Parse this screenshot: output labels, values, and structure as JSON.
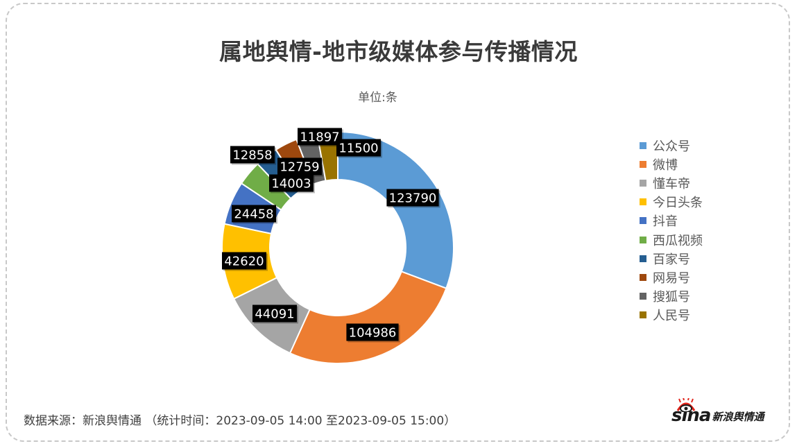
{
  "header": {
    "title": "属地舆情-地市级媒体参与传播情况",
    "subtitle": "单位:条"
  },
  "footer": {
    "source": "数据来源：新浪舆情通 （统计时间：2023-09-05 14:00 至2023-09-05 15:00）",
    "logo_sina": "sina",
    "logo_text": "新浪舆情通"
  },
  "legend": [
    {
      "label": "公众号",
      "color": "#5b9bd5"
    },
    {
      "label": "微博",
      "color": "#ed7d31"
    },
    {
      "label": "懂车帝",
      "color": "#a5a5a5"
    },
    {
      "label": "今日头条",
      "color": "#ffc000"
    },
    {
      "label": "抖音",
      "color": "#4472c4"
    },
    {
      "label": "西瓜视频",
      "color": "#70ad47"
    },
    {
      "label": "百家号",
      "color": "#255e91"
    },
    {
      "label": "网易号",
      "color": "#9e480e"
    },
    {
      "label": "搜狐号",
      "color": "#636363"
    },
    {
      "label": "人民号",
      "color": "#997300"
    }
  ],
  "chart_data": {
    "type": "pie",
    "subtype": "donut",
    "title": "属地舆情-地市级媒体参与传播情况",
    "subtitle": "单位:条",
    "categories": [
      "公众号",
      "微博",
      "懂车帝",
      "今日头条",
      "抖音",
      "西瓜视频",
      "百家号",
      "网易号",
      "搜狐号",
      "人民号"
    ],
    "values": [
      123790,
      104986,
      44091,
      42620,
      24458,
      14003,
      12858,
      12759,
      11897,
      11500
    ],
    "colors": [
      "#5b9bd5",
      "#ed7d31",
      "#a5a5a5",
      "#ffc000",
      "#4472c4",
      "#70ad47",
      "#255e91",
      "#9e480e",
      "#636363",
      "#997300"
    ],
    "data_labels": [
      "123790",
      "104986",
      "44091",
      "42620",
      "24458",
      "14003",
      "12858",
      "12759",
      "11897",
      "11500"
    ],
    "legend_position": "right",
    "unit": "条"
  }
}
